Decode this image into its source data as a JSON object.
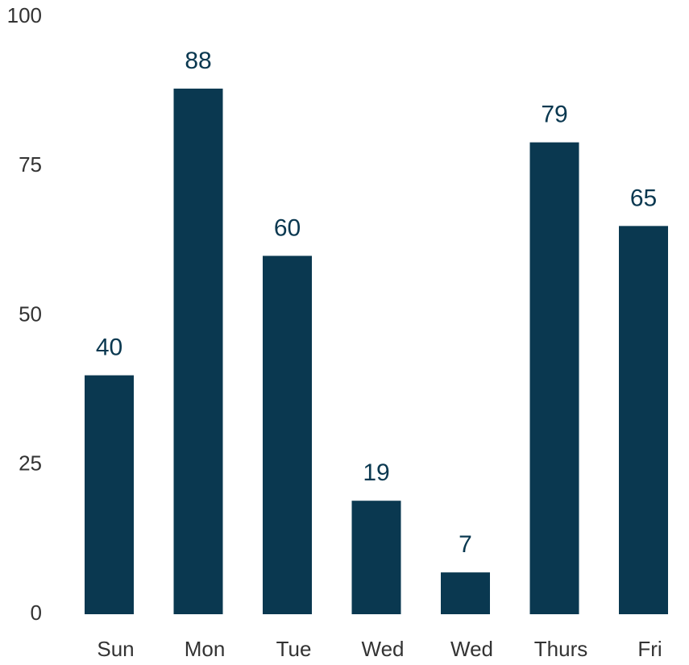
{
  "chart_data": {
    "type": "bar",
    "categories": [
      "Sun",
      "Mon",
      "Tue",
      "Wed",
      "Wed",
      "Thurs",
      "Fri"
    ],
    "values": [
      40,
      88,
      60,
      19,
      7,
      79,
      65
    ],
    "color": "#0a3850",
    "ylim": [
      0,
      100
    ],
    "yticks": [
      0,
      25,
      50,
      75,
      100
    ],
    "grid": false
  }
}
